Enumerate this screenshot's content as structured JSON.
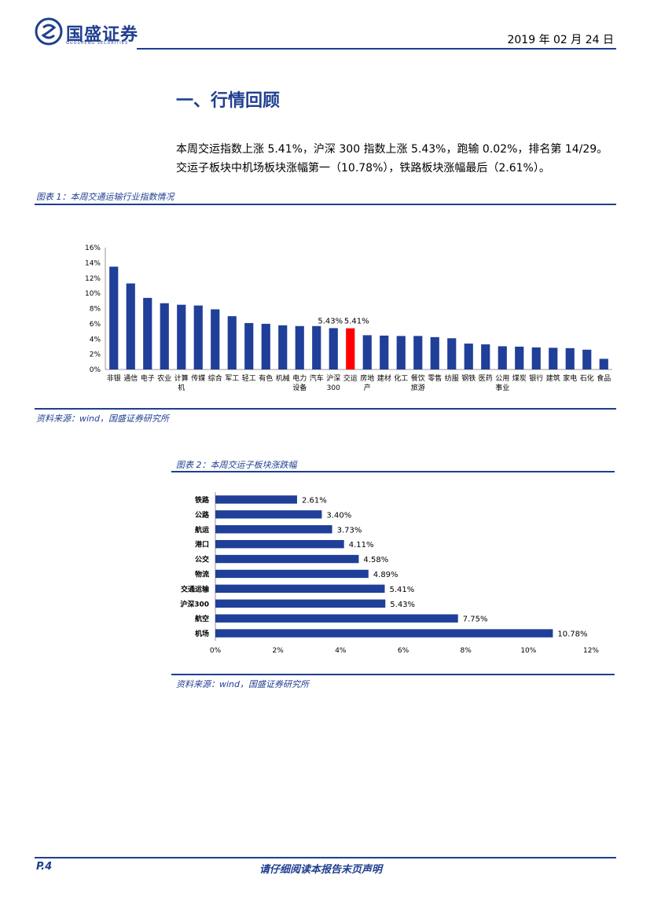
{
  "header": {
    "company_name": "国盛证券",
    "company_sub": "GUOSHENG SECURITIES",
    "date": "2019 年 02 月 24 日"
  },
  "section": {
    "title": "一、行情回顾",
    "paragraph": "本周交运指数上涨 5.41%，沪深 300 指数上涨 5.43%，跑输 0.02%，排名第 14/29。交运子板块中机场板块涨幅第一（10.78%），铁路板块涨幅最后（2.61%）。"
  },
  "figure1": {
    "label": "图表 1：本周交通运输行业指数情况",
    "source": "资料来源：wind，国盛证券研究所"
  },
  "figure2": {
    "label": "图表 2：本周交运子板块涨跌幅",
    "source": "资料来源：wind，国盛证券研究所"
  },
  "footer": {
    "page": "P.4",
    "note": "请仔细阅读本报告末页声明"
  },
  "colors": {
    "brand": "#1f3f8f",
    "bar": "#1f3f99",
    "highlight": "#ff0000"
  },
  "chart_data": [
    {
      "type": "bar",
      "title": "",
      "xlabel": "",
      "ylabel": "",
      "ylim": [
        0,
        16
      ],
      "yticks": [
        "0%",
        "2%",
        "4%",
        "6%",
        "8%",
        "10%",
        "12%",
        "14%",
        "16%"
      ],
      "grid": false,
      "categories": [
        "非银",
        "通信",
        "电子",
        "农业",
        "计算机",
        "传媒",
        "综合",
        "军工",
        "轻工",
        "有色",
        "机械",
        "电力设备",
        "汽车",
        "沪深300",
        "交运",
        "房地产",
        "建材",
        "化工",
        "餐饮旅游",
        "零售",
        "纺服",
        "钢铁",
        "医药",
        "公用事业",
        "煤炭",
        "银行",
        "建筑",
        "家电",
        "石化",
        "食品"
      ],
      "category_lines": [
        [
          "非银"
        ],
        [
          "通信"
        ],
        [
          "电子"
        ],
        [
          "农业"
        ],
        [
          "计算",
          "机"
        ],
        [
          "传媒"
        ],
        [
          "综合"
        ],
        [
          "军工"
        ],
        [
          "轻工"
        ],
        [
          "有色"
        ],
        [
          "机械"
        ],
        [
          "电力",
          "设备"
        ],
        [
          "汽车"
        ],
        [
          "沪深",
          "300"
        ],
        [
          "交运"
        ],
        [
          "房地",
          "产"
        ],
        [
          "建材"
        ],
        [
          "化工"
        ],
        [
          "餐饮",
          "旅游"
        ],
        [
          "零售"
        ],
        [
          "纺服"
        ],
        [
          "钢铁"
        ],
        [
          "医药"
        ],
        [
          "公用",
          "事业"
        ],
        [
          "煤炭"
        ],
        [
          "银行"
        ],
        [
          "建筑"
        ],
        [
          "家电"
        ],
        [
          "石化"
        ],
        [
          "食品"
        ]
      ],
      "values": [
        13.5,
        11.3,
        9.4,
        8.7,
        8.5,
        8.4,
        7.9,
        7.0,
        6.1,
        6.0,
        5.8,
        5.7,
        5.7,
        5.43,
        5.41,
        4.5,
        4.45,
        4.4,
        4.4,
        4.25,
        4.1,
        3.4,
        3.3,
        3.05,
        3.0,
        2.9,
        2.85,
        2.8,
        2.6,
        1.4
      ],
      "highlight_index": 14,
      "data_labels": [
        {
          "category": "沪深300",
          "text": "5.43%"
        },
        {
          "category": "交运",
          "text": "5.41%"
        }
      ]
    },
    {
      "type": "bar",
      "orientation": "horizontal",
      "title": "",
      "xlabel": "",
      "ylabel": "",
      "xlim": [
        0,
        12
      ],
      "xticks": [
        "0%",
        "2%",
        "4%",
        "6%",
        "8%",
        "10%",
        "12%"
      ],
      "grid": false,
      "categories": [
        "铁路",
        "公路",
        "航运",
        "港口",
        "公交",
        "物流",
        "交通运输",
        "沪深300",
        "航空",
        "机场"
      ],
      "values": [
        2.61,
        3.4,
        3.73,
        4.11,
        4.58,
        4.89,
        5.41,
        5.43,
        7.75,
        10.78
      ],
      "labels": [
        "2.61%",
        "3.40%",
        "3.73%",
        "4.11%",
        "4.58%",
        "4.89%",
        "5.41%",
        "5.43%",
        "7.75%",
        "10.78%"
      ]
    }
  ]
}
